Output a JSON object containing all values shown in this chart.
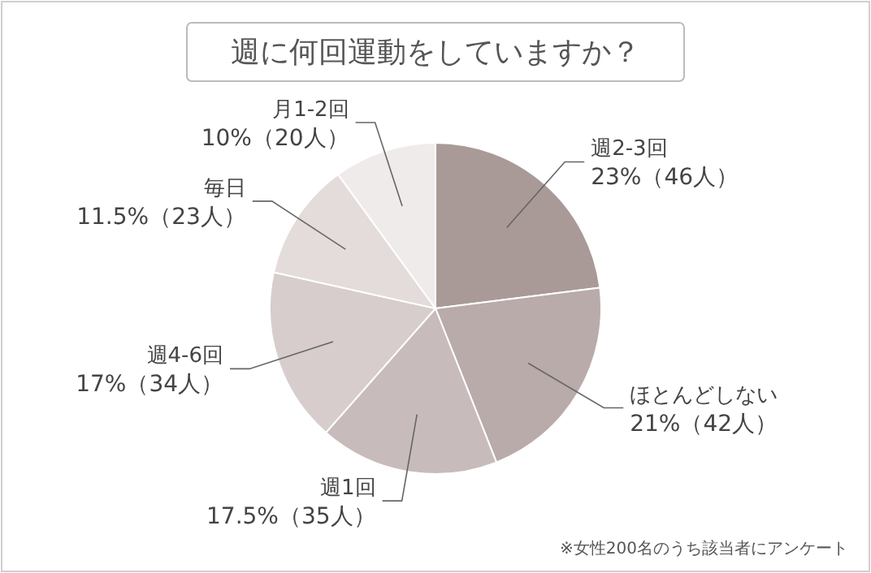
{
  "chart_data": {
    "type": "pie",
    "title": "週に何回運動をしていますか？",
    "categories": [
      "週2-3回",
      "ほとんどしない",
      "週1回",
      "週4-6回",
      "毎日",
      "月1-2回"
    ],
    "values": [
      23,
      21,
      17.5,
      17,
      11.5,
      10
    ],
    "value_labels": [
      "23%（46人）",
      "21%（42人）",
      "17.5%（35人）",
      "17%（34人）",
      "11.5%（23人）",
      "10%（20人）"
    ],
    "colors": [
      "#a99a98",
      "#b9abaa",
      "#c7bcbb",
      "#d6cdcc",
      "#e3dcdb",
      "#efebea"
    ],
    "annotations": [
      "※女性200名のうち該当者にアンケート"
    ]
  }
}
